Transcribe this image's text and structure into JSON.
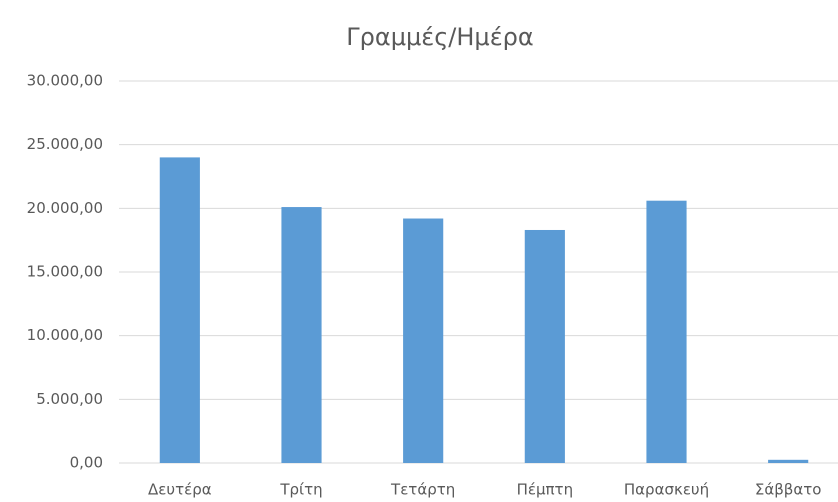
{
  "chart_data": {
    "type": "bar",
    "title": "Γραμμές/Ημέρα",
    "categories": [
      "Δευτέρα",
      "Τρίτη",
      "Τετάρτη",
      "Πέμπτη",
      "Παρασκευή",
      "Σάββατο"
    ],
    "values": [
      24000,
      20100,
      19200,
      18300,
      20600,
      250
    ],
    "color": "#5b9bd5",
    "ylim": [
      0,
      30000
    ],
    "yticks": [
      {
        "value": 0,
        "label": "0,00"
      },
      {
        "value": 5000,
        "label": "5.000,00"
      },
      {
        "value": 10000,
        "label": "10.000,00"
      },
      {
        "value": 15000,
        "label": "15.000,00"
      },
      {
        "value": 20000,
        "label": "20.000,00"
      },
      {
        "value": 25000,
        "label": "25.000,00"
      },
      {
        "value": 30000,
        "label": "30.000,00"
      }
    ],
    "grid": true
  }
}
